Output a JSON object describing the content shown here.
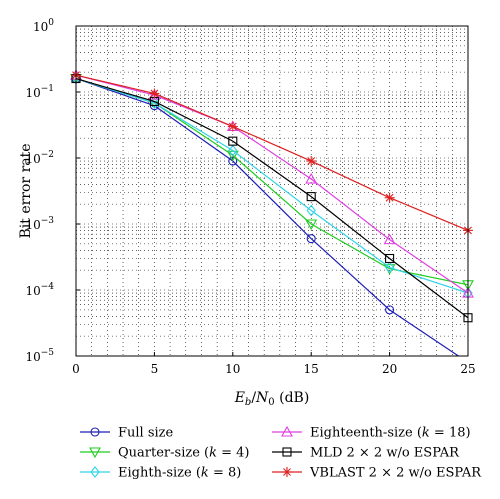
{
  "chart_data": {
    "type": "line",
    "xlabel": "E_b/N_0 (dB)",
    "xlabel_parts": {
      "e": "E",
      "b": "b",
      "slash": "/",
      "n": "N",
      "zero": "0",
      "unit": " (dB)"
    },
    "ylabel": "Bit error rate",
    "x": [
      0,
      5,
      10,
      15,
      20,
      25
    ],
    "xlim": [
      0,
      25
    ],
    "ylim": [
      1e-05,
      1
    ],
    "yscale": "log",
    "grid": true,
    "x_ticks": [
      "0",
      "5",
      "10",
      "15",
      "20",
      "25"
    ],
    "y_ticks": [
      {
        "base": "10",
        "exp": "0",
        "value": 1
      },
      {
        "base": "10",
        "exp": "−1",
        "value": 0.1
      },
      {
        "base": "10",
        "exp": "−2",
        "value": 0.01
      },
      {
        "base": "10",
        "exp": "−3",
        "value": 0.001
      },
      {
        "base": "10",
        "exp": "−4",
        "value": 0.0001
      },
      {
        "base": "10",
        "exp": "−5",
        "value": 1e-05
      }
    ],
    "legend_position": "bottom",
    "series": [
      {
        "name": "Full size",
        "label_parts": [
          "Full size"
        ],
        "color": "#1f1fb8",
        "marker": "circle",
        "values": [
          0.16,
          0.062,
          0.009,
          0.0006,
          5e-05,
          8e-06
        ]
      },
      {
        "name": "Quarter-size (k = 4)",
        "label_parts": [
          "Quarter-size (",
          "k",
          " = 4)"
        ],
        "color": "#22cc22",
        "marker": "triangle-down",
        "values": [
          0.16,
          0.068,
          0.011,
          0.001,
          0.00021,
          0.00012
        ]
      },
      {
        "name": "Eighth-size (k = 8)",
        "label_parts": [
          "Eighth-size (",
          "k",
          " = 8)"
        ],
        "color": "#33d4e8",
        "marker": "diamond",
        "values": [
          0.16,
          0.068,
          0.013,
          0.0016,
          0.00022,
          9e-05
        ]
      },
      {
        "name": "Eighteenth-size (k = 18)",
        "label_parts": [
          "Eighteenth-size (",
          "k",
          " = 18)"
        ],
        "color": "#e040e0",
        "marker": "triangle-up",
        "values": [
          0.18,
          0.09,
          0.03,
          0.0048,
          0.00058,
          9e-05
        ]
      },
      {
        "name": "MLD 2 × 2 w/o ESPAR",
        "label_parts": [
          "MLD 2 × 2 w/o ESPAR"
        ],
        "color": "#000000",
        "marker": "square",
        "values": [
          0.16,
          0.072,
          0.018,
          0.0026,
          0.0003,
          3.8e-05
        ]
      },
      {
        "name": "VBLAST 2 × 2 w/o ESPAR",
        "label_parts": [
          "VBLAST 2 × 2 w/o ESPAR"
        ],
        "color": "#dd2222",
        "marker": "asterisk",
        "values": [
          0.18,
          0.095,
          0.03,
          0.009,
          0.0025,
          0.0008
        ]
      }
    ]
  }
}
